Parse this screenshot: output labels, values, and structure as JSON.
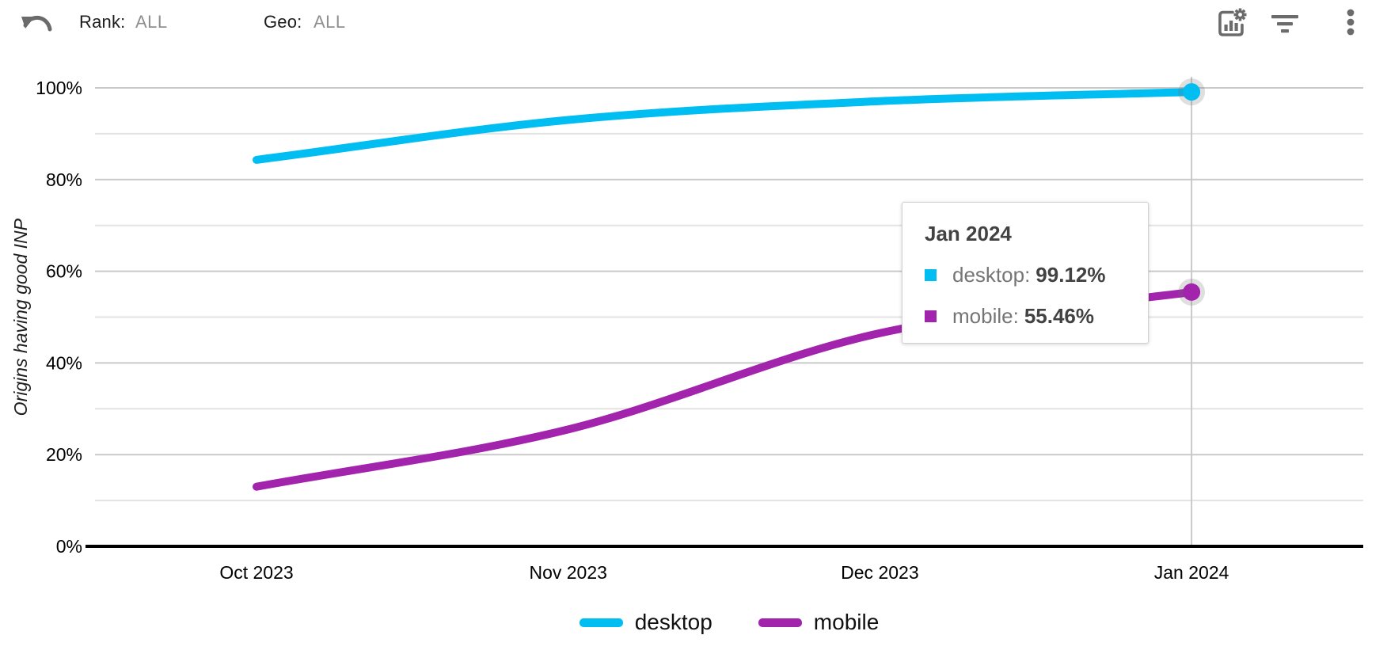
{
  "toolbar": {
    "rank_label": "Rank:",
    "rank_value": "ALL",
    "geo_label": "Geo:",
    "geo_value": "ALL",
    "icons": [
      "undo-icon",
      "chart-settings-icon",
      "filter-icon",
      "more-vert-icon"
    ]
  },
  "colors": {
    "desktop": "#00BDF2",
    "mobile": "#A224AD",
    "grid_major": "#c9c9c9",
    "grid_minor": "#e3e3e3",
    "axis": "#000000",
    "hover_line": "#c9c9c9",
    "dot_halo": "rgba(110,110,110,0.22)",
    "tick_text": "#000000",
    "icon_gray": "#6b6b6b",
    "muted_text": "#8f8f8f"
  },
  "chart_data": {
    "type": "line",
    "title": "",
    "xlabel": "",
    "ylabel": "Origins having good INP",
    "x": [
      "Oct 2023",
      "Nov 2023",
      "Dec 2023",
      "Jan 2024"
    ],
    "series": [
      {
        "name": "desktop",
        "color": "#00BDF2",
        "values": [
          84.3,
          93.0,
          97.1,
          99.12
        ]
      },
      {
        "name": "mobile",
        "color": "#A224AD",
        "values": [
          13.0,
          25.5,
          46.5,
          55.46
        ]
      }
    ],
    "ylim": [
      0,
      100
    ],
    "ytick_values": [
      0,
      20,
      40,
      60,
      80,
      100
    ],
    "ytick_labels": [
      "0%",
      "20%",
      "40%",
      "60%",
      "80%",
      "100%"
    ],
    "minor_grid_values": [
      10,
      30,
      50,
      70,
      90
    ],
    "grid": true,
    "curve": "smooth",
    "legend_position": "bottom",
    "hover": {
      "x_index": 3,
      "label": "Jan 2024",
      "end_dots": true
    }
  },
  "tooltip": {
    "title": "Jan 2024",
    "rows": [
      {
        "series": "desktop",
        "label": "desktop:",
        "value": "99.12%"
      },
      {
        "series": "mobile",
        "label": "mobile:",
        "value": "55.46%"
      }
    ]
  },
  "legend": {
    "items": [
      {
        "series": "desktop",
        "label": "desktop"
      },
      {
        "series": "mobile",
        "label": "mobile"
      }
    ]
  }
}
